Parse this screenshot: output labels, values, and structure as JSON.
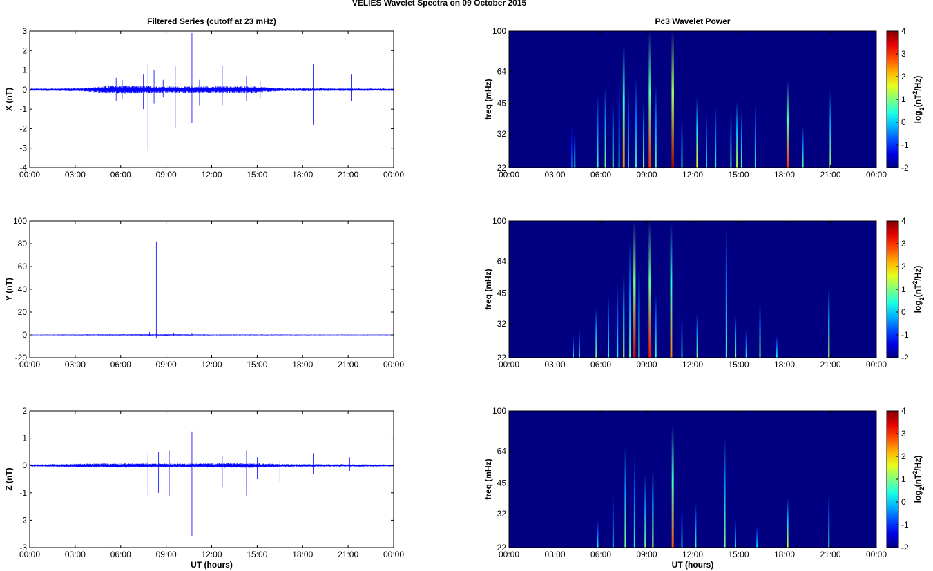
{
  "figure": {
    "suptitle": "VELIES Wavelet Spectra on 09 October   2015"
  },
  "chart_data": [
    {
      "type": "line",
      "title": "Filtered Series (cutoff at 23 mHz)",
      "xlabel": "",
      "ylabel": "X (nT)",
      "xlim": [
        0,
        24
      ],
      "ylim": [
        -4,
        3
      ],
      "yticks": [
        "-4",
        "-3",
        "-2",
        "-1",
        "0",
        "1",
        "2",
        "3"
      ],
      "xticks": [
        "00:00",
        "03:00",
        "06:00",
        "09:00",
        "12:00",
        "15:00",
        "18:00",
        "21:00",
        "00:00"
      ],
      "line_color": "#0000ff",
      "baseline_noise": [
        [
          0,
          0.06
        ],
        [
          3.4,
          0.08
        ],
        [
          5.5,
          0.22
        ],
        [
          9.5,
          0.16
        ],
        [
          14.5,
          0.18
        ],
        [
          16.5,
          0.08
        ],
        [
          24,
          0.06
        ]
      ],
      "spikes": [
        {
          "x": 5.7,
          "up": 0.6,
          "down": -0.6
        },
        {
          "x": 6.1,
          "up": 0.5,
          "down": -0.5
        },
        {
          "x": 7.5,
          "up": 0.8,
          "down": -1.0
        },
        {
          "x": 7.8,
          "up": 1.3,
          "down": -3.1
        },
        {
          "x": 8.2,
          "up": 1.0,
          "down": -0.7
        },
        {
          "x": 8.8,
          "up": 0.5,
          "down": -0.4
        },
        {
          "x": 9.6,
          "up": 1.2,
          "down": -2.0
        },
        {
          "x": 10.7,
          "up": 2.9,
          "down": -1.7
        },
        {
          "x": 11.2,
          "up": 0.5,
          "down": -0.8
        },
        {
          "x": 12.7,
          "up": 1.2,
          "down": -0.8
        },
        {
          "x": 14.3,
          "up": 0.7,
          "down": -0.6
        },
        {
          "x": 15.2,
          "up": 0.5,
          "down": -0.5
        },
        {
          "x": 18.7,
          "up": 1.3,
          "down": -1.8
        },
        {
          "x": 21.2,
          "up": 0.8,
          "down": -0.6
        }
      ]
    },
    {
      "type": "line",
      "title": "",
      "xlabel": "",
      "ylabel": "Y (nT)",
      "xlim": [
        0,
        24
      ],
      "ylim": [
        -20,
        100
      ],
      "yticks": [
        "-20",
        "0",
        "20",
        "40",
        "60",
        "80",
        "100"
      ],
      "xticks": [
        "00:00",
        "03:00",
        "06:00",
        "09:00",
        "12:00",
        "15:00",
        "18:00",
        "21:00",
        "00:00"
      ],
      "line_color": "#0000ff",
      "baseline_noise": [
        [
          0,
          0.3
        ],
        [
          6,
          0.5
        ],
        [
          9,
          0.6
        ],
        [
          12,
          0.4
        ],
        [
          24,
          0.3
        ]
      ],
      "spikes": [
        {
          "x": 7.9,
          "up": 2.5,
          "down": -1.0
        },
        {
          "x": 8.35,
          "up": 82,
          "down": -3.0
        },
        {
          "x": 9.5,
          "up": 1.5,
          "down": -1.0
        },
        {
          "x": 10.7,
          "up": 1.2,
          "down": -0.8
        }
      ]
    },
    {
      "type": "line",
      "title": "",
      "xlabel": "UT (hours)",
      "ylabel": "Z (nT)",
      "xlim": [
        0,
        24
      ],
      "ylim": [
        -3,
        2
      ],
      "yticks": [
        "-3",
        "-2",
        "-1",
        "0",
        "1",
        "2"
      ],
      "xticks": [
        "00:00",
        "03:00",
        "06:00",
        "09:00",
        "12:00",
        "15:00",
        "18:00",
        "21:00",
        "00:00"
      ],
      "line_color": "#0000ff",
      "baseline_noise": [
        [
          0,
          0.04
        ],
        [
          5.5,
          0.08
        ],
        [
          9.5,
          0.07
        ],
        [
          14.5,
          0.09
        ],
        [
          17,
          0.05
        ],
        [
          24,
          0.04
        ]
      ],
      "spikes": [
        {
          "x": 7.8,
          "up": 0.45,
          "down": -1.1
        },
        {
          "x": 8.5,
          "up": 0.5,
          "down": -1.0
        },
        {
          "x": 9.2,
          "up": 0.55,
          "down": -1.1
        },
        {
          "x": 9.9,
          "up": 0.3,
          "down": -0.7
        },
        {
          "x": 10.7,
          "up": 1.25,
          "down": -2.6
        },
        {
          "x": 12.7,
          "up": 0.35,
          "down": -0.8
        },
        {
          "x": 14.3,
          "up": 0.55,
          "down": -1.1
        },
        {
          "x": 15.0,
          "up": 0.3,
          "down": -0.5
        },
        {
          "x": 16.5,
          "up": 0.2,
          "down": -0.6
        },
        {
          "x": 18.7,
          "up": 0.45,
          "down": -0.3
        },
        {
          "x": 21.1,
          "up": 0.3,
          "down": -0.2
        }
      ]
    },
    {
      "type": "heatmap",
      "title": "Pc3 Wavelet Power",
      "xlabel": "",
      "ylabel": "freq (mHz)",
      "xlim": [
        0,
        24
      ],
      "ylim": [
        22,
        100
      ],
      "yscale": "log",
      "yticks": [
        "22",
        "32",
        "45",
        "64",
        "100"
      ],
      "xticks": [
        "00:00",
        "03:00",
        "06:00",
        "09:00",
        "12:00",
        "15:00",
        "18:00",
        "21:00",
        "00:00"
      ],
      "colorbar": {
        "label": "log2(nT^2/Hz)",
        "label_base": "log",
        "label_sub": "2",
        "label_mid": "(nT",
        "label_sup": "2",
        "label_end": "/Hz)",
        "range": [
          -2,
          4
        ],
        "ticks": [
          "-2",
          "-1",
          "0",
          "1",
          "2",
          "3",
          "4"
        ]
      },
      "colormap": "jet",
      "background_level": -2,
      "streaks": [
        {
          "t": 4.1,
          "top": 36,
          "peak": -0.5
        },
        {
          "t": 4.3,
          "top": 32,
          "peak": 0.5
        },
        {
          "t": 5.8,
          "top": 50,
          "peak": 0.6
        },
        {
          "t": 6.3,
          "top": 55,
          "peak": 1.0
        },
        {
          "t": 6.8,
          "top": 45,
          "peak": 0.8
        },
        {
          "t": 7.2,
          "top": 60,
          "peak": 0.2
        },
        {
          "t": 7.5,
          "top": 85,
          "peak": 2.5
        },
        {
          "t": 7.8,
          "top": 55,
          "peak": 0.5
        },
        {
          "t": 8.3,
          "top": 60,
          "peak": 0.6
        },
        {
          "t": 8.8,
          "top": 45,
          "peak": 1.0
        },
        {
          "t": 9.2,
          "top": 100,
          "peak": 3.0
        },
        {
          "t": 9.6,
          "top": 55,
          "peak": 0.8
        },
        {
          "t": 10.7,
          "top": 100,
          "peak": 3.8
        },
        {
          "t": 11.3,
          "top": 38,
          "peak": 0.5
        },
        {
          "t": 12.3,
          "top": 48,
          "peak": 1.8
        },
        {
          "t": 12.9,
          "top": 40,
          "peak": 0.5
        },
        {
          "t": 13.5,
          "top": 44,
          "peak": 0.5
        },
        {
          "t": 14.5,
          "top": 40,
          "peak": 0.6
        },
        {
          "t": 14.9,
          "top": 46,
          "peak": 1.4
        },
        {
          "t": 15.2,
          "top": 42,
          "peak": 0.8
        },
        {
          "t": 16.1,
          "top": 45,
          "peak": 0.5
        },
        {
          "t": 18.2,
          "top": 58,
          "peak": 3.0
        },
        {
          "t": 19.2,
          "top": 35,
          "peak": 0.8
        },
        {
          "t": 21.0,
          "top": 52,
          "peak": 1.2
        }
      ]
    },
    {
      "type": "heatmap",
      "title": "",
      "xlabel": "",
      "ylabel": "freq (mHz)",
      "xlim": [
        0,
        24
      ],
      "ylim": [
        22,
        100
      ],
      "yscale": "log",
      "yticks": [
        "22",
        "32",
        "45",
        "64",
        "100"
      ],
      "xticks": [
        "00:00",
        "03:00",
        "06:00",
        "09:00",
        "12:00",
        "15:00",
        "18:00",
        "21:00",
        "00:00"
      ],
      "colorbar": {
        "label": "log2(nT^2/Hz)",
        "label_base": "log",
        "label_sub": "2",
        "label_mid": "(nT",
        "label_sup": "2",
        "label_end": "/Hz)",
        "range": [
          -2,
          4
        ],
        "ticks": [
          "-2",
          "-1",
          "0",
          "1",
          "2",
          "3",
          "4"
        ]
      },
      "colormap": "jet",
      "background_level": -2,
      "streaks": [
        {
          "t": 4.2,
          "top": 28,
          "peak": 0.2
        },
        {
          "t": 4.6,
          "top": 30,
          "peak": 0.4
        },
        {
          "t": 5.7,
          "top": 38,
          "peak": 1.0
        },
        {
          "t": 6.5,
          "top": 44,
          "peak": 0.5
        },
        {
          "t": 7.1,
          "top": 50,
          "peak": 0.3
        },
        {
          "t": 7.5,
          "top": 55,
          "peak": 1.2
        },
        {
          "t": 7.9,
          "top": 80,
          "peak": 0.8
        },
        {
          "t": 8.2,
          "top": 100,
          "peak": 3.5
        },
        {
          "t": 8.5,
          "top": 60,
          "peak": 0.8
        },
        {
          "t": 9.2,
          "top": 100,
          "peak": 3.2
        },
        {
          "t": 9.6,
          "top": 45,
          "peak": 0.6
        },
        {
          "t": 10.6,
          "top": 98,
          "peak": 2.5
        },
        {
          "t": 11.3,
          "top": 35,
          "peak": 0.3
        },
        {
          "t": 12.3,
          "top": 36,
          "peak": 0.9
        },
        {
          "t": 14.2,
          "top": 95,
          "peak": 0.6
        },
        {
          "t": 14.8,
          "top": 35,
          "peak": 1.0
        },
        {
          "t": 15.5,
          "top": 30,
          "peak": 0.4
        },
        {
          "t": 16.4,
          "top": 40,
          "peak": 0.8
        },
        {
          "t": 17.5,
          "top": 28,
          "peak": 0.4
        },
        {
          "t": 20.9,
          "top": 48,
          "peak": 1.2
        }
      ]
    },
    {
      "type": "heatmap",
      "title": "",
      "xlabel": "UT (hours)",
      "ylabel": "freq (mHz)",
      "xlim": [
        0,
        24
      ],
      "ylim": [
        22,
        100
      ],
      "yscale": "log",
      "yticks": [
        "22",
        "32",
        "45",
        "64",
        "100"
      ],
      "xticks": [
        "00:00",
        "03:00",
        "06:00",
        "09:00",
        "12:00",
        "15:00",
        "18:00",
        "21:00",
        "00:00"
      ],
      "colorbar": {
        "label": "log2(nT^2/Hz)",
        "label_base": "log",
        "label_sub": "2",
        "label_mid": "(nT",
        "label_sup": "2",
        "label_end": "/Hz)",
        "range": [
          -2,
          4
        ],
        "ticks": [
          "-2",
          "-1",
          "0",
          "1",
          "2",
          "3",
          "4"
        ]
      },
      "colormap": "jet",
      "background_level": -2,
      "streaks": [
        {
          "t": 5.8,
          "top": 30,
          "peak": 0.3
        },
        {
          "t": 6.8,
          "top": 40,
          "peak": 0.3
        },
        {
          "t": 7.6,
          "top": 68,
          "peak": 1.0
        },
        {
          "t": 8.2,
          "top": 60,
          "peak": 0.5
        },
        {
          "t": 8.9,
          "top": 50,
          "peak": 0.9
        },
        {
          "t": 9.4,
          "top": 52,
          "peak": 1.2
        },
        {
          "t": 10.7,
          "top": 85,
          "peak": 2.8
        },
        {
          "t": 11.3,
          "top": 34,
          "peak": 0.3
        },
        {
          "t": 12.2,
          "top": 36,
          "peak": 0.6
        },
        {
          "t": 14.1,
          "top": 75,
          "peak": 1.0
        },
        {
          "t": 14.8,
          "top": 30,
          "peak": 0.3
        },
        {
          "t": 16.2,
          "top": 28,
          "peak": 0.2
        },
        {
          "t": 18.2,
          "top": 38,
          "peak": 1.5
        },
        {
          "t": 20.9,
          "top": 40,
          "peak": 0.6
        }
      ]
    }
  ]
}
